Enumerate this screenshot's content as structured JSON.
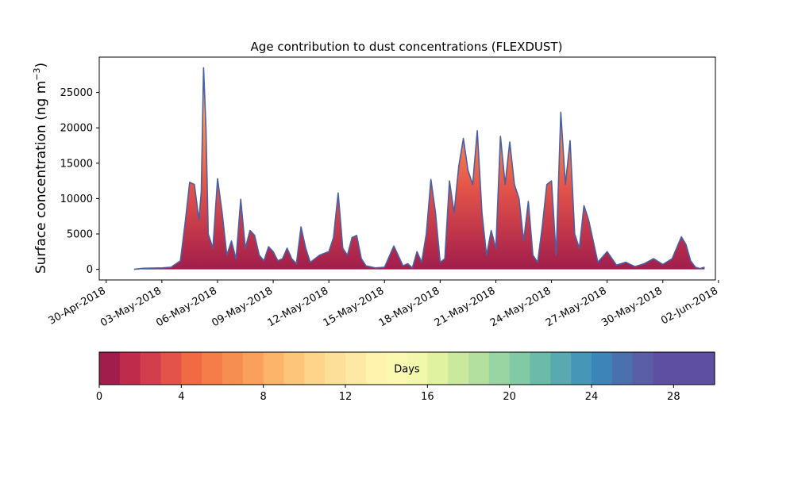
{
  "chart_data": {
    "type": "area",
    "title": "Age contribution to dust concentrations (FLEXDUST)",
    "ylabel": "Surface concentration (ng m",
    "ylabel_sup": "−3",
    "ylabel_close": ")",
    "xlabel": "",
    "ylim": [
      -1500,
      30000
    ],
    "xlim": [
      "2018-04-29T15:00",
      "2018-06-01T20:00"
    ],
    "yticks": [
      0,
      5000,
      10000,
      15000,
      20000,
      25000
    ],
    "xticks": [
      "2018-04-30",
      "2018-05-03",
      "2018-05-06",
      "2018-05-09",
      "2018-05-12",
      "2018-05-15",
      "2018-05-18",
      "2018-05-21",
      "2018-05-24",
      "2018-05-27",
      "2018-05-30",
      "2018-06-02"
    ],
    "xtick_labels": [
      "30-Apr-2018",
      "03-May-2018",
      "06-May-2018",
      "09-May-2018",
      "12-May-2018",
      "15-May-2018",
      "18-May-2018",
      "21-May-2018",
      "24-May-2018",
      "27-May-2018",
      "30-May-2018",
      "02-Jun-2018"
    ],
    "total_series": {
      "x": [
        "2018-05-01T12:00",
        "2018-05-02T00:00",
        "2018-05-03T00:00",
        "2018-05-03T12:00",
        "2018-05-04T00:00",
        "2018-05-04T06:00",
        "2018-05-04T12:00",
        "2018-05-04T18:00",
        "2018-05-05T00:00",
        "2018-05-05T03:00",
        "2018-05-05T06:00",
        "2018-05-05T09:00",
        "2018-05-05T12:00",
        "2018-05-05T18:00",
        "2018-05-06T00:00",
        "2018-05-06T06:00",
        "2018-05-06T12:00",
        "2018-05-06T18:00",
        "2018-05-07T00:00",
        "2018-05-07T06:00",
        "2018-05-07T12:00",
        "2018-05-07T18:00",
        "2018-05-08T00:00",
        "2018-05-08T06:00",
        "2018-05-08T12:00",
        "2018-05-08T18:00",
        "2018-05-09T00:00",
        "2018-05-09T06:00",
        "2018-05-09T12:00",
        "2018-05-09T18:00",
        "2018-05-10T00:00",
        "2018-05-10T06:00",
        "2018-05-10T12:00",
        "2018-05-10T18:00",
        "2018-05-11T00:00",
        "2018-05-11T12:00",
        "2018-05-12T00:00",
        "2018-05-12T06:00",
        "2018-05-12T12:00",
        "2018-05-12T18:00",
        "2018-05-13T00:00",
        "2018-05-13T06:00",
        "2018-05-13T12:00",
        "2018-05-13T18:00",
        "2018-05-14T00:00",
        "2018-05-14T12:00",
        "2018-05-15T00:00",
        "2018-05-15T12:00",
        "2018-05-16T00:00",
        "2018-05-16T06:00",
        "2018-05-16T12:00",
        "2018-05-16T18:00",
        "2018-05-17T00:00",
        "2018-05-17T06:00",
        "2018-05-17T12:00",
        "2018-05-17T18:00",
        "2018-05-18T00:00",
        "2018-05-18T06:00",
        "2018-05-18T12:00",
        "2018-05-18T18:00",
        "2018-05-19T00:00",
        "2018-05-19T06:00",
        "2018-05-19T12:00",
        "2018-05-19T18:00",
        "2018-05-20T00:00",
        "2018-05-20T06:00",
        "2018-05-20T12:00",
        "2018-05-20T18:00",
        "2018-05-21T00:00",
        "2018-05-21T06:00",
        "2018-05-21T12:00",
        "2018-05-21T18:00",
        "2018-05-22T00:00",
        "2018-05-22T06:00",
        "2018-05-22T12:00",
        "2018-05-22T18:00",
        "2018-05-23T00:00",
        "2018-05-23T06:00",
        "2018-05-23T12:00",
        "2018-05-23T18:00",
        "2018-05-24T00:00",
        "2018-05-24T06:00",
        "2018-05-24T12:00",
        "2018-05-24T18:00",
        "2018-05-25T00:00",
        "2018-05-25T06:00",
        "2018-05-25T12:00",
        "2018-05-25T18:00",
        "2018-05-26T00:00",
        "2018-05-26T12:00",
        "2018-05-27T00:00",
        "2018-05-27T12:00",
        "2018-05-28T00:00",
        "2018-05-28T12:00",
        "2018-05-29T00:00",
        "2018-05-29T12:00",
        "2018-05-30T00:00",
        "2018-05-30T12:00",
        "2018-05-31T00:00",
        "2018-05-31T06:00",
        "2018-05-31T12:00",
        "2018-05-31T18:00",
        "2018-06-01T00:00",
        "2018-06-01T06:00"
      ],
      "y": [
        0,
        150,
        200,
        300,
        1200,
        6500,
        12300,
        12000,
        7000,
        11000,
        28500,
        20000,
        5000,
        3000,
        12800,
        8000,
        2000,
        4000,
        1500,
        9900,
        3000,
        5500,
        4800,
        2000,
        1200,
        3200,
        2500,
        1200,
        1500,
        3000,
        1500,
        800,
        6000,
        3000,
        1000,
        2000,
        2500,
        4500,
        10800,
        3000,
        2000,
        4500,
        4800,
        1500,
        500,
        200,
        300,
        3300,
        500,
        800,
        200,
        2500,
        1000,
        5000,
        12700,
        8000,
        1000,
        1500,
        12500,
        8000,
        14500,
        18500,
        14000,
        12000,
        19600,
        8000,
        2000,
        5500,
        3000,
        18800,
        12000,
        18000,
        12000,
        10000,
        4000,
        9600,
        2000,
        1000,
        6000,
        12000,
        12500,
        2000,
        22200,
        12000,
        18200,
        5000,
        3000,
        9000,
        7000,
        1000,
        2500,
        600,
        1000,
        400,
        800,
        1500,
        700,
        1500,
        4600,
        3500,
        1200,
        300,
        100,
        300
      ]
    },
    "colorbar": {
      "label": "Days",
      "range": [
        0,
        30
      ],
      "bins": 30,
      "ticks": [
        0,
        4,
        8,
        12,
        16,
        20,
        24,
        28
      ],
      "colors": [
        "#a11d4c",
        "#bf2b4b",
        "#d23e4d",
        "#e35349",
        "#f06a44",
        "#f57d4a",
        "#f68e52",
        "#f9a05c",
        "#fcb46a",
        "#fdc57a",
        "#fed38a",
        "#fedf97",
        "#fee8a3",
        "#fff3ad",
        "#fbf8b0",
        "#f1f7ab",
        "#e0f1a0",
        "#cbe99d",
        "#b3e09e",
        "#99d5a3",
        "#81caa6",
        "#6bbba8",
        "#59a9b0",
        "#4697b7",
        "#3d84b8",
        "#4b70ae",
        "#5a5ea6",
        "#5e4fa2",
        "#5e4fa2",
        "#5e4fa2"
      ]
    },
    "line_color": "#4a5fa6",
    "grid": false,
    "legend": "none"
  }
}
